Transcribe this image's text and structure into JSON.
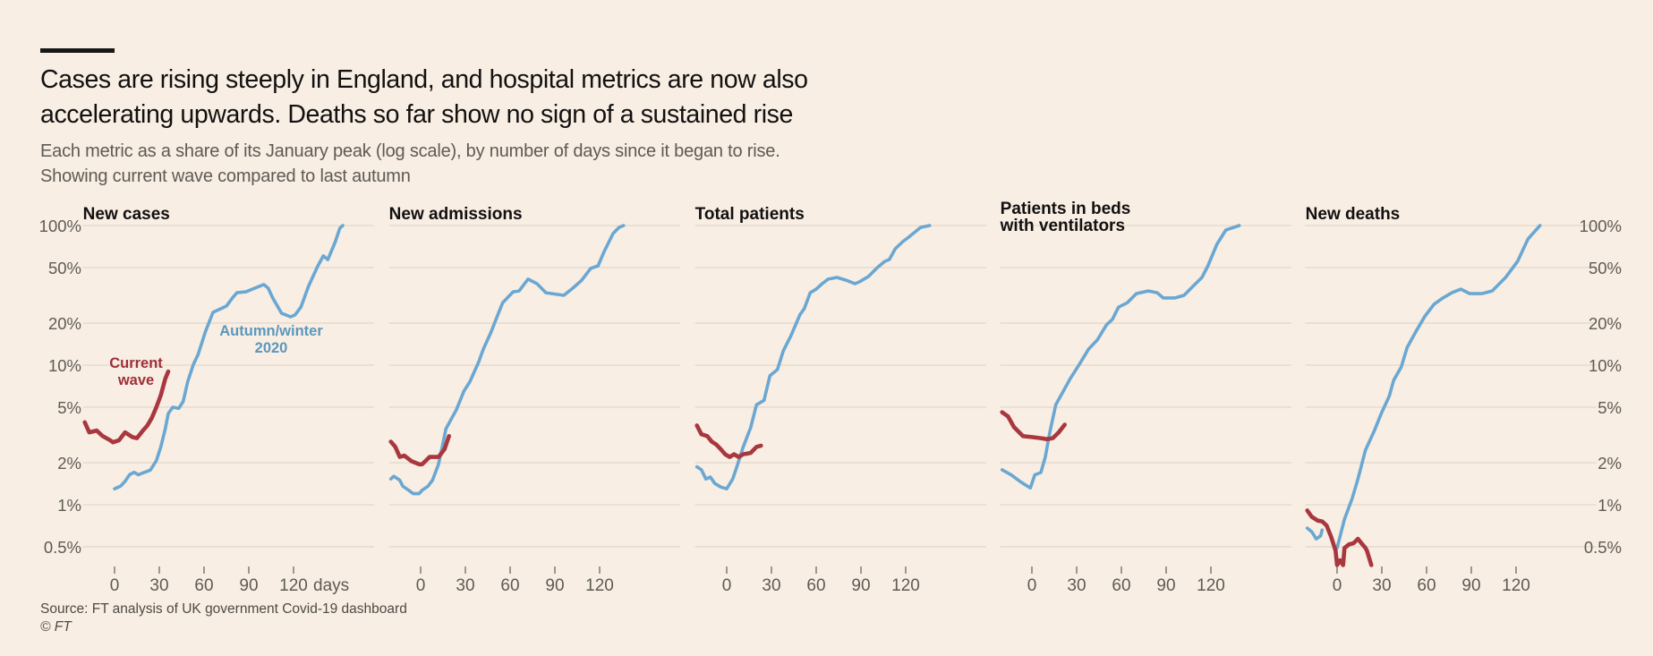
{
  "header": {
    "title_line1": "Cases are rising steeply in England, and hospital metrics are now also",
    "title_line2": "accelerating upwards. Deaths so far show no sign of a sustained rise",
    "subtitle_line1": "Each metric as a share of its January peak (log scale), by number of days since it began to rise.",
    "subtitle_line2": "Showing current wave compared to last autumn"
  },
  "footer": {
    "source": "Source: FT analysis of UK government Covid-19 dashboard",
    "copyright": "© FT"
  },
  "colors": {
    "autumn_winter_2020": "#6aa7d2",
    "current_wave": "#a8373e",
    "autumn_label": "#5b97bd",
    "current_label": "#9f2f39"
  },
  "chart_data": {
    "type": "line",
    "title": "Cases are rising steeply in England, and hospital metrics are now also accelerating upwards. Deaths so far show no sign of a sustained rise",
    "xlabel": "days",
    "ylabel": "Share of January peak (log scale)",
    "yscale": "log",
    "ylim": [
      0.4,
      100
    ],
    "xlim": [
      -20,
      175
    ],
    "grid": true,
    "y_ticks": [
      100,
      50,
      20,
      10,
      5,
      2,
      1,
      0.5
    ],
    "y_tick_labels": [
      "100%",
      "50%",
      "20%",
      "10%",
      "5%",
      "2%",
      "1%",
      "0.5%"
    ],
    "x_ticks": [
      0,
      30,
      60,
      90,
      120
    ],
    "x_tick_labels": [
      "0",
      "30",
      "60",
      "90",
      "120"
    ],
    "x_unit_label": "days",
    "legend": "inline-annotations",
    "series_names": [
      "Autumn/winter 2020",
      "Current wave"
    ],
    "annotations": [
      {
        "panel": 0,
        "series": "Current wave",
        "line1": "Current",
        "line2": "wave"
      },
      {
        "panel": 0,
        "series": "Autumn/winter 2020",
        "line1": "Autumn/winter",
        "line2": "2020"
      }
    ],
    "panels": [
      {
        "title_line1": "New cases",
        "title_line2": "",
        "series": [
          {
            "name": "Autumn/winter 2020",
            "x": [
              0,
              4,
              7,
              10,
              13,
              16,
              19,
              24,
              28,
              31,
              34,
              36,
              39,
              43,
              46,
              49,
              53,
              56,
              61,
              66,
              70,
              75,
              79,
              82,
              88,
              94,
              100,
              103,
              106,
              112,
              118,
              121,
              125,
              130,
              136,
              140,
              143,
              145,
              148,
              151,
              153
            ],
            "y": [
              1.3,
              1.36,
              1.47,
              1.64,
              1.71,
              1.64,
              1.69,
              1.77,
              2.07,
              2.6,
              3.5,
              4.5,
              5.0,
              4.9,
              5.5,
              7.6,
              10.2,
              11.9,
              17.5,
              23.9,
              25,
              26.5,
              30.3,
              33,
              33.5,
              35.6,
              37.8,
              35.6,
              30.3,
              23.5,
              22.2,
              22.9,
              26.1,
              36.7,
              50.7,
              60.6,
              57,
              64.2,
              76.7,
              95.7,
              100
            ]
          },
          {
            "name": "Current wave",
            "x": [
              -20,
              -17,
              -12,
              -8,
              -3,
              -1,
              3,
              7,
              12,
              15,
              19,
              22,
              25,
              28,
              31,
              34,
              36
            ],
            "y": [
              3.9,
              3.3,
              3.4,
              3.1,
              2.9,
              2.8,
              2.9,
              3.3,
              3.05,
              3.0,
              3.4,
              3.7,
              4.2,
              5.0,
              6.1,
              8.0,
              9.0
            ]
          }
        ]
      },
      {
        "title_line1": "New admissions",
        "title_line2": "",
        "series": [
          {
            "name": "Autumn/winter 2020",
            "x": [
              -20,
              -18,
              -14,
              -12,
              -8,
              -5,
              -1,
              1,
              5,
              8,
              12,
              17,
              21,
              24,
              29,
              33,
              39,
              42,
              47,
              51,
              55,
              62,
              66,
              72,
              78,
              84,
              96,
              102,
              108,
              114,
              119,
              123,
              129,
              133,
              136
            ],
            "y": [
              1.53,
              1.6,
              1.5,
              1.36,
              1.27,
              1.2,
              1.2,
              1.27,
              1.36,
              1.5,
              1.95,
              3.5,
              4.2,
              4.8,
              6.5,
              7.6,
              10.6,
              13.0,
              17,
              21.9,
              28,
              33.5,
              34,
              41.3,
              38.3,
              33,
              31.6,
              35.6,
              40.6,
              49.3,
              51.5,
              65,
              87.6,
              97,
              100
            ]
          },
          {
            "name": "Current wave",
            "x": [
              -20,
              -17,
              -14,
              -11,
              -6,
              -1,
              1,
              6,
              9,
              12,
              16,
              19
            ],
            "y": [
              2.83,
              2.6,
              2.2,
              2.25,
              2.05,
              1.95,
              1.95,
              2.2,
              2.2,
              2.2,
              2.5,
              3.1
            ]
          }
        ]
      },
      {
        "title_line1": "Total patients",
        "title_line2": "",
        "series": [
          {
            "name": "Autumn/winter 2020",
            "x": [
              -20,
              -17,
              -14,
              -11,
              -8,
              -4,
              0,
              4,
              7,
              11,
              16,
              20,
              25,
              29,
              34,
              38,
              43,
              49,
              52,
              56,
              60,
              64,
              68,
              74,
              80,
              86,
              89,
              95,
              101,
              106,
              109,
              113,
              118,
              122,
              130,
              136
            ],
            "y": [
              1.87,
              1.78,
              1.53,
              1.58,
              1.42,
              1.34,
              1.3,
              1.53,
              1.9,
              2.58,
              3.56,
              5.2,
              5.6,
              8.4,
              9.3,
              12.7,
              16.2,
              22.9,
              25.4,
              33,
              35,
              38.3,
              41.3,
              42.5,
              40.6,
              38.3,
              39.5,
              43.1,
              50,
              55.4,
              57.1,
              68.1,
              76.7,
              82.6,
              97,
              100
            ]
          },
          {
            "name": "Current wave",
            "x": [
              -20,
              -17,
              -13,
              -10,
              -7,
              -4,
              -1,
              2,
              5,
              8,
              11,
              16,
              20,
              23
            ],
            "y": [
              3.7,
              3.2,
              3.1,
              2.83,
              2.7,
              2.5,
              2.3,
              2.2,
              2.3,
              2.2,
              2.3,
              2.35,
              2.6,
              2.65
            ]
          }
        ]
      },
      {
        "title_line1": "Patients in beds",
        "title_line2": "with ventilators",
        "series": [
          {
            "name": "Autumn/winter 2020",
            "x": [
              -20,
              -14,
              -8,
              -4,
              -1,
              2,
              6,
              9,
              12,
              16,
              20,
              26,
              32,
              38,
              44,
              50,
              54,
              58,
              64,
              70,
              78,
              84,
              88,
              96,
              102,
              108,
              114,
              118,
              124,
              130,
              139
            ],
            "y": [
              1.78,
              1.64,
              1.47,
              1.38,
              1.32,
              1.64,
              1.7,
              2.2,
              3.3,
              5.2,
              6.2,
              8.1,
              10.2,
              13,
              15.2,
              19.4,
              21.3,
              26,
              28,
              32.5,
              34,
              33,
              30.3,
              30.3,
              31.6,
              36.7,
              42.5,
              51.5,
              73.4,
              92.9,
              100
            ]
          },
          {
            "name": "Current wave",
            "x": [
              -20,
              -16,
              -12,
              -6,
              0,
              6,
              10,
              14,
              18,
              22
            ],
            "y": [
              4.6,
              4.3,
              3.6,
              3.1,
              3.05,
              3.0,
              2.95,
              3.0,
              3.3,
              3.75
            ]
          }
        ]
      },
      {
        "title_line1": "New deaths",
        "title_line2": "",
        "series": [
          {
            "name": "Autumn/winter 2020",
            "segments": [
              {
                "x": [
                  -20,
                  -17,
                  -14,
                  -11,
                  -10
                ],
                "y": [
                  0.68,
                  0.64,
                  0.57,
                  0.6,
                  0.66
                ]
              },
              {
                "x": [
                  0,
                  5,
                  10,
                  14,
                  19,
                  25,
                  30,
                  35,
                  38,
                  43,
                  47,
                  53,
                  59,
                  65,
                  71,
                  77,
                  83,
                  89,
                  97,
                  104,
                  113,
                  121,
                  128,
                  136
                ],
                "y": [
                  0.49,
                  0.79,
                  1.1,
                  1.53,
                  2.46,
                  3.4,
                  4.6,
                  6,
                  7.8,
                  9.7,
                  13.4,
                  17.5,
                  22.5,
                  27.3,
                  30.3,
                  33,
                  35,
                  32.5,
                  32.5,
                  34,
                  42.5,
                  55.4,
                  80,
                  100
                ]
              }
            ]
          },
          {
            "name": "Current wave",
            "x": [
              -20,
              -17,
              -13,
              -10,
              -7,
              -4,
              -1,
              0,
              2,
              4,
              5,
              8,
              11,
              14,
              17,
              19,
              20,
              23
            ],
            "y": [
              0.91,
              0.82,
              0.77,
              0.76,
              0.71,
              0.59,
              0.47,
              0.37,
              0.4,
              0.37,
              0.49,
              0.52,
              0.53,
              0.57,
              0.52,
              0.49,
              0.47,
              0.37
            ]
          }
        ]
      }
    ]
  }
}
